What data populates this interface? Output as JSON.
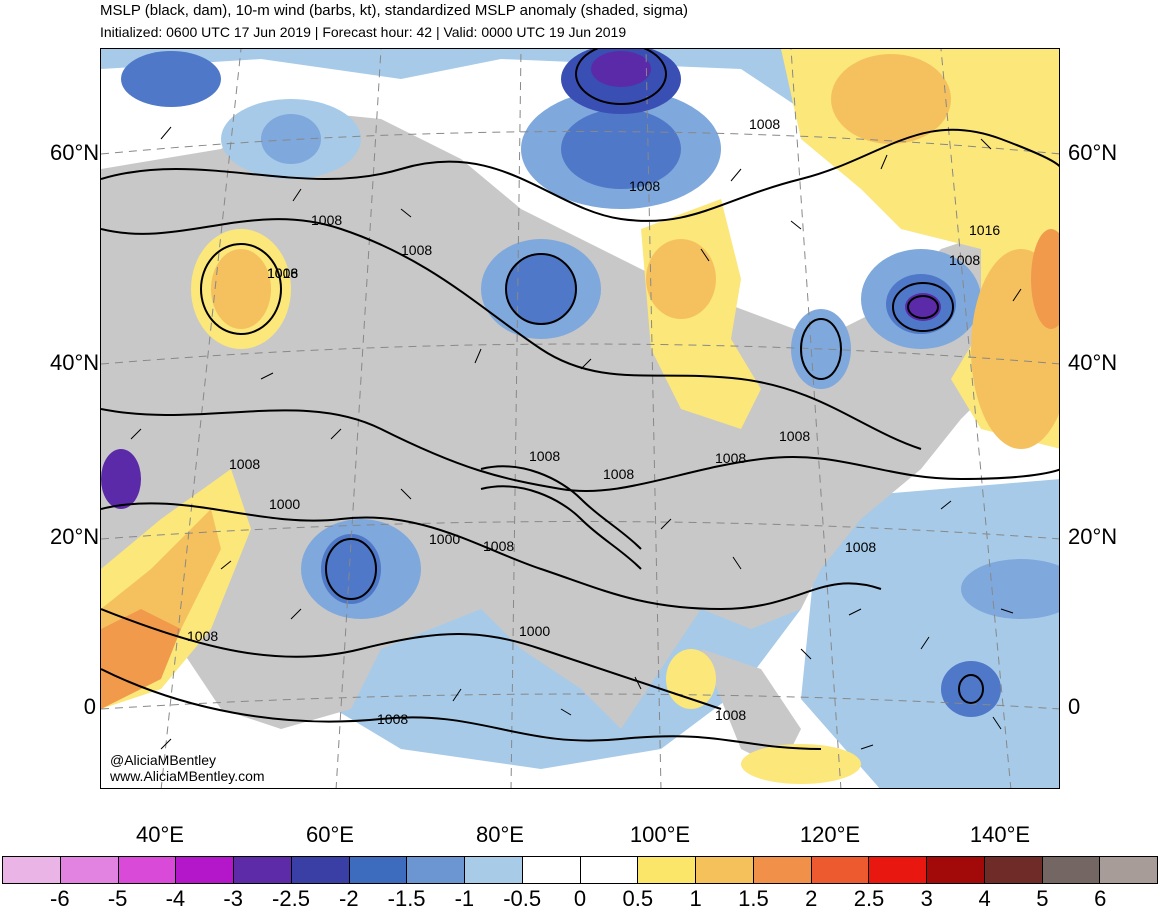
{
  "header": {
    "title": "MSLP (black, dam), 10-m wind (barbs, kt), standardized MSLP anomaly (shaded, sigma)",
    "subtitle": "Initialized: 0600 UTC 17 Jun 2019 | Forecast hour: 42 | Valid: 0000 UTC 19 Jun 2019"
  },
  "map": {
    "region": "Asia",
    "lat_labels": [
      "60°N",
      "40°N",
      "20°N",
      "0"
    ],
    "lon_labels": [
      "40°E",
      "60°E",
      "80°E",
      "100°E",
      "120°E",
      "140°E"
    ],
    "contour_labels": [
      "1008",
      "1008",
      "1008",
      "1008",
      "1008",
      "1016",
      "1008",
      "1016",
      "1008",
      "1000",
      "1008",
      "1000",
      "1008",
      "1008",
      "1008",
      "1008",
      "1008",
      "1000",
      "1008",
      "1008",
      "1008"
    ],
    "credit_handle": "@AliciaMBentley",
    "credit_url": "www.AliciaMBentley.com",
    "colors": {
      "land": "#c8c8c8",
      "anom_neg_0_5": "#a6cae8",
      "anom_neg_1": "#7fa8dc",
      "anom_neg_1_5": "#4f78c8",
      "anom_neg_2": "#3a4fb4",
      "anom_neg_2_5": "#5b2aa8",
      "anom_pos_0_5": "#fbe77a",
      "anom_pos_1": "#f5c15e",
      "anom_pos_1_5": "#f19a4c"
    }
  },
  "colorbar": {
    "labels": [
      "-6",
      "-5",
      "-4",
      "-3",
      "-2.5",
      "-2",
      "-1.5",
      "-1",
      "-0.5",
      "0",
      "0.5",
      "1",
      "1.5",
      "2",
      "2.5",
      "3",
      "4",
      "5",
      "6"
    ],
    "colors": [
      "#ebb4e6",
      "#e383e1",
      "#d94ad9",
      "#b417c9",
      "#5e2ba8",
      "#3a3fa5",
      "#3d6cbf",
      "#6b96d2",
      "#a8cbe8",
      "#ffffff",
      "#ffffff",
      "#fbe66a",
      "#f5c15a",
      "#f19048",
      "#ee5a2f",
      "#e81710",
      "#a20a0a",
      "#6e2b28",
      "#736663",
      "#a89c98"
    ]
  }
}
